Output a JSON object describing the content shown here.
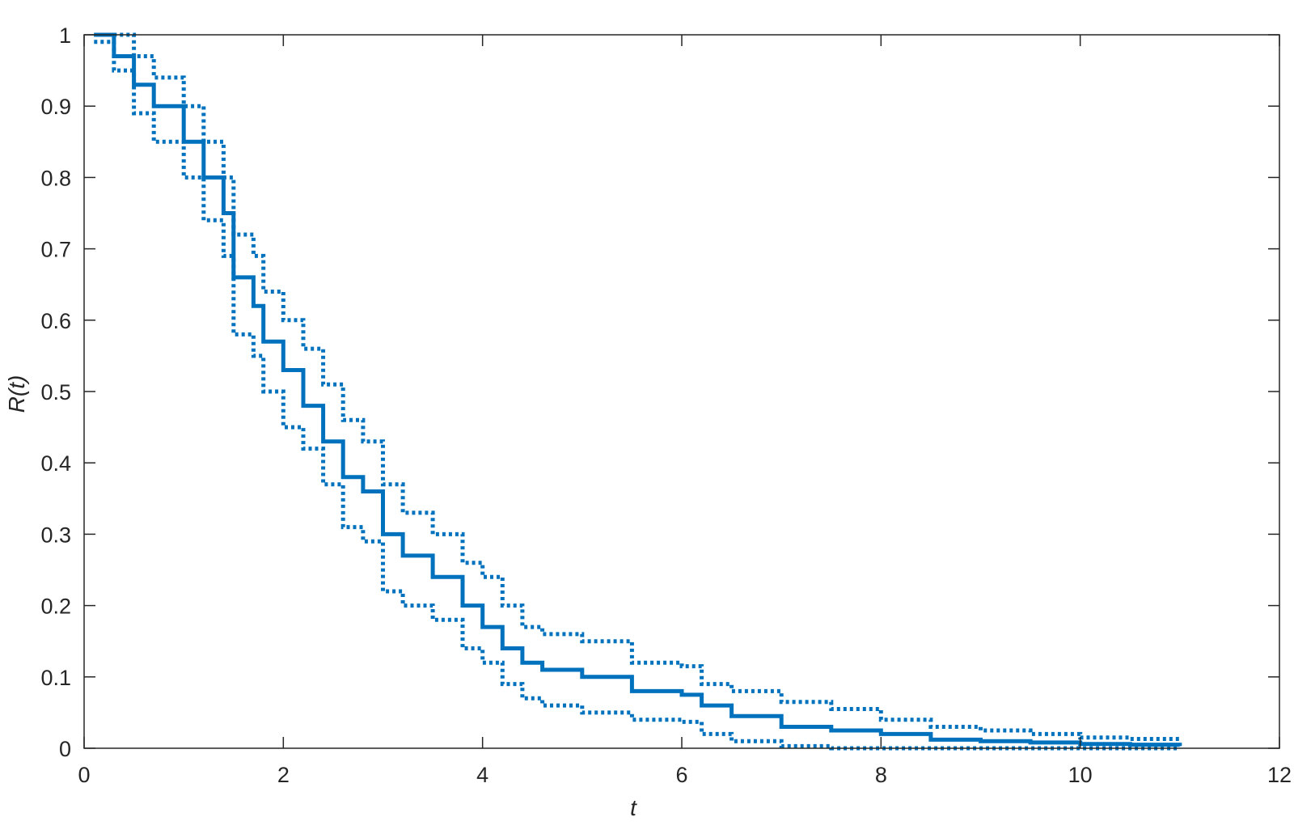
{
  "chart_data": {
    "type": "line",
    "title": "",
    "xlabel": "t",
    "ylabel": "R(t)",
    "xlim": [
      0,
      12
    ],
    "ylim": [
      0,
      1
    ],
    "x_ticks": [
      0,
      2,
      4,
      6,
      8,
      10,
      12
    ],
    "y_ticks": [
      0,
      0.1,
      0.2,
      0.3,
      0.4,
      0.5,
      0.6,
      0.7,
      0.8,
      0.9,
      1
    ],
    "x_tick_labels": [
      "0",
      "2",
      "4",
      "6",
      "8",
      "10",
      "12"
    ],
    "y_tick_labels": [
      "0",
      "0.1",
      "0.2",
      "0.3",
      "0.4",
      "0.5",
      "0.6",
      "0.7",
      "0.8",
      "0.9",
      "1"
    ],
    "grid": false,
    "box": true,
    "series": [
      {
        "style": "solid",
        "color": "#0072BD",
        "x": [
          0.1,
          0.3,
          0.5,
          0.7,
          1.0,
          1.2,
          1.4,
          1.5,
          1.7,
          1.8,
          2.0,
          2.2,
          2.4,
          2.6,
          2.8,
          3.0,
          3.2,
          3.5,
          3.8,
          4.0,
          4.2,
          4.4,
          4.6,
          5.0,
          5.5,
          6.0,
          6.2,
          6.5,
          7.0,
          7.5,
          8.0,
          8.5,
          9.0,
          9.5,
          10.0,
          10.5,
          11.0
        ],
        "y": [
          1.0,
          0.97,
          0.93,
          0.9,
          0.85,
          0.8,
          0.75,
          0.66,
          0.62,
          0.57,
          0.53,
          0.48,
          0.43,
          0.38,
          0.36,
          0.3,
          0.27,
          0.24,
          0.2,
          0.17,
          0.14,
          0.12,
          0.11,
          0.1,
          0.08,
          0.075,
          0.06,
          0.045,
          0.03,
          0.025,
          0.02,
          0.012,
          0.01,
          0.008,
          0.006,
          0.005,
          0.003
        ]
      },
      {
        "style": "dotted",
        "color": "#0072BD",
        "x": [
          0.1,
          0.3,
          0.5,
          0.7,
          1.0,
          1.2,
          1.4,
          1.5,
          1.7,
          1.8,
          2.0,
          2.2,
          2.4,
          2.6,
          2.8,
          3.0,
          3.2,
          3.5,
          3.8,
          4.0,
          4.2,
          4.4,
          4.6,
          5.0,
          5.5,
          6.0,
          6.2,
          6.5,
          7.0,
          7.5,
          8.0,
          8.5,
          9.0,
          9.5,
          10.0,
          10.5,
          11.0
        ],
        "y": [
          1.0,
          1.0,
          0.97,
          0.94,
          0.9,
          0.85,
          0.8,
          0.72,
          0.69,
          0.64,
          0.6,
          0.56,
          0.51,
          0.46,
          0.43,
          0.37,
          0.33,
          0.3,
          0.26,
          0.24,
          0.2,
          0.17,
          0.16,
          0.15,
          0.12,
          0.115,
          0.09,
          0.08,
          0.065,
          0.055,
          0.04,
          0.03,
          0.025,
          0.02,
          0.015,
          0.013,
          0.01
        ]
      },
      {
        "style": "dotted",
        "color": "#0072BD",
        "x": [
          0.1,
          0.3,
          0.5,
          0.7,
          1.0,
          1.2,
          1.4,
          1.5,
          1.7,
          1.8,
          2.0,
          2.2,
          2.4,
          2.6,
          2.8,
          3.0,
          3.2,
          3.5,
          3.8,
          4.0,
          4.2,
          4.4,
          4.6,
          5.0,
          5.5,
          6.0,
          6.2,
          6.5,
          7.0,
          7.5,
          8.0,
          8.5,
          9.0,
          9.5,
          10.0,
          10.5,
          11.0
        ],
        "y": [
          0.99,
          0.95,
          0.89,
          0.85,
          0.8,
          0.74,
          0.69,
          0.58,
          0.55,
          0.5,
          0.45,
          0.42,
          0.37,
          0.31,
          0.29,
          0.22,
          0.2,
          0.18,
          0.14,
          0.12,
          0.09,
          0.07,
          0.06,
          0.05,
          0.04,
          0.037,
          0.02,
          0.01,
          0.003,
          0.0,
          0.0,
          0.0,
          0.0,
          0.0,
          0.0,
          0.0,
          0.0
        ]
      }
    ]
  }
}
